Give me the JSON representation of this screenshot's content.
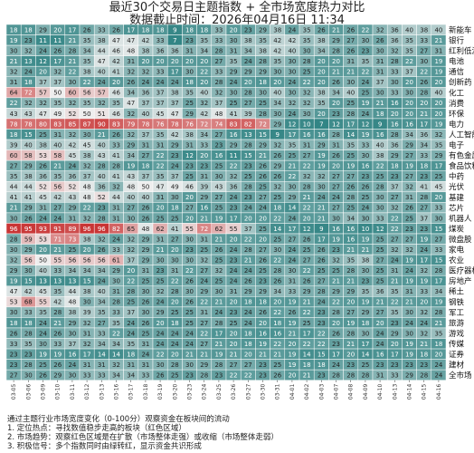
{
  "header": {
    "title": "最近30个交易日主题指数 + 全市场宽度热力对比",
    "subtitle": "数据截止时间：2026年04月16日 11:34"
  },
  "notes": {
    "lines": [
      "通过主题行业市场宽度变化（0-100分）观察资金在板块间的流动",
      "1. 定位热点：寻找数值稳步走高的板块（红色区域）",
      "2. 市场趋势：观察红色区域是在扩散（市场整体走强）或收缩（市场整体走弱）",
      "3. 积极信号：多个指数同时由绿转红，显示资金共识形成"
    ]
  },
  "chart_data": {
    "type": "heatmap",
    "title": "最近30个交易日主题指数 + 全市场宽度热力对比",
    "subtitle": "数据截止时间：2026年04月16日 11:34",
    "color_scale": {
      "low": "#2a8080",
      "mid": "#eeeeee",
      "high": "#c62828",
      "range": [
        0,
        100
      ]
    },
    "x": [
      "03-05",
      "03-06",
      "03-09",
      "03-10",
      "03-11",
      "03-12",
      "03-13",
      "03-16",
      "03-17",
      "03-18",
      "03-19",
      "03-20",
      "03-23",
      "03-24",
      "03-25",
      "03-26",
      "03-27",
      "03-30",
      "03-31",
      "04-01",
      "04-02",
      "04-03",
      "04-07",
      "04-08",
      "04-09",
      "04-10",
      "04-13",
      "04-14",
      "04-15",
      "04-16"
    ],
    "y": [
      "新能车",
      "银行",
      "红利低波",
      "电池",
      "通信",
      "创新药",
      "化工",
      "消费",
      "环保",
      "电力",
      "人工智能",
      "电子",
      "有色金属",
      "食品饮料",
      "中药",
      "光伏",
      "基建",
      "芯片",
      "机器人",
      "煤炭",
      "微盘股",
      "家电",
      "农业",
      "医疗器械",
      "房地产",
      "稀土",
      "钢铁",
      "军工",
      "旅游",
      "游戏",
      "传媒",
      "证券",
      "建材",
      "全市场"
    ],
    "values": [
      [
        18,
        18,
        29,
        20,
        17,
        26,
        33,
        26,
        17,
        18,
        18,
        9,
        18,
        18,
        33,
        20,
        23,
        29,
        38,
        24,
        35,
        26,
        21,
        26,
        22,
        32,
        36,
        40,
        38,
        40
      ],
      [
        19,
        23,
        11,
        11,
        21,
        35,
        38,
        47,
        47,
        42,
        33,
        7,
        23,
        35,
        33,
        30,
        38,
        35,
        42,
        42,
        35,
        38,
        29,
        27,
        30,
        26,
        36,
        35,
        33,
        21
      ],
      [
        30,
        32,
        24,
        26,
        28,
        34,
        44,
        46,
        48,
        38,
        36,
        36,
        31,
        34,
        28,
        31,
        34,
        38,
        42,
        40,
        30,
        34,
        28,
        26,
        23,
        30,
        32,
        35,
        27,
        31
      ],
      [
        21,
        13,
        12,
        17,
        21,
        35,
        47,
        42,
        31,
        20,
        20,
        20,
        20,
        20,
        27,
        35,
        24,
        28,
        35,
        30,
        28,
        20,
        20,
        31,
        35,
        31,
        28,
        22,
        30,
        19
      ],
      [
        32,
        24,
        20,
        32,
        22,
        38,
        40,
        41,
        32,
        32,
        33,
        17,
        30,
        22,
        33,
        29,
        29,
        29,
        30,
        30,
        25,
        20,
        21,
        21,
        22,
        31,
        33,
        37,
        22,
        19
      ],
      [
        31,
        18,
        37,
        37,
        30,
        22,
        24,
        20,
        26,
        24,
        24,
        24,
        18,
        20,
        28,
        24,
        20,
        18,
        20,
        24,
        22,
        20,
        26,
        30,
        24,
        37,
        30,
        20,
        26,
        20
      ],
      [
        64,
        72,
        57,
        50,
        60,
        56,
        57,
        46,
        34,
        36,
        37,
        38,
        35,
        40,
        32,
        30,
        28,
        30,
        40,
        30,
        32,
        38,
        34,
        40,
        25,
        30,
        33,
        30,
        28,
        40
      ],
      [
        22,
        32,
        32,
        35,
        32,
        35,
        32,
        35,
        47,
        37,
        37,
        37,
        25,
        32,
        37,
        25,
        27,
        25,
        34,
        32,
        32,
        35,
        20,
        25,
        19,
        21,
        16,
        20,
        20,
        20
      ],
      [
        43,
        43,
        47,
        49,
        52,
        50,
        51,
        46,
        32,
        40,
        45,
        47,
        29,
        42,
        48,
        41,
        39,
        28,
        30,
        24,
        30,
        20,
        23,
        28,
        24,
        18,
        20,
        20,
        21,
        20
      ],
      [
        78,
        78,
        80,
        83,
        85,
        87,
        90,
        83,
        79,
        78,
        76,
        78,
        76,
        72,
        74,
        83,
        82,
        72,
        29,
        12,
        10,
        7,
        12,
        17,
        12,
        9,
        16,
        16,
        17,
        19
      ],
      [
        18,
        15,
        25,
        31,
        32,
        30,
        21,
        26,
        32,
        37,
        35,
        42,
        38,
        34,
        27,
        16,
        13,
        15,
        9,
        17,
        16,
        16,
        28,
        14,
        19,
        16,
        28,
        34,
        36,
        32
      ],
      [
        39,
        40,
        38,
        40,
        42,
        45,
        40,
        33,
        29,
        31,
        31,
        29,
        31,
        33,
        23,
        29,
        28,
        29,
        32,
        35,
        31,
        29,
        31,
        35,
        33,
        40,
        36,
        29,
        34,
        35
      ],
      [
        60,
        58,
        53,
        58,
        45,
        38,
        43,
        41,
        34,
        27,
        22,
        23,
        12,
        20,
        16,
        11,
        15,
        21,
        26,
        25,
        27,
        19,
        26,
        25,
        30,
        38,
        29,
        27,
        33,
        29
      ],
      [
        27,
        29,
        26,
        21,
        24,
        32,
        28,
        28,
        19,
        18,
        22,
        24,
        23,
        23,
        25,
        22,
        23,
        26,
        29,
        21,
        22,
        19,
        20,
        19,
        16,
        22,
        18,
        19,
        18,
        17
      ],
      [
        35,
        38,
        36,
        35,
        36,
        37,
        40,
        41,
        43,
        37,
        35,
        37,
        25,
        31,
        30,
        32,
        25,
        26,
        26,
        22,
        32,
        32,
        27,
        27,
        23,
        25,
        23,
        27,
        23,
        25
      ],
      [
        44,
        44,
        52,
        56,
        52,
        48,
        36,
        32,
        48,
        50,
        47,
        49,
        46,
        39,
        43,
        36,
        28,
        25,
        32,
        30,
        28,
        30,
        27,
        26,
        26,
        28,
        37,
        32,
        41,
        45
      ],
      [
        41,
        41,
        45,
        42,
        43,
        48,
        52,
        44,
        40,
        40,
        31,
        30,
        20,
        29,
        27,
        24,
        23,
        27,
        25,
        29,
        21,
        24,
        24,
        28,
        25,
        30,
        27,
        31,
        28,
        20
      ],
      [
        21,
        29,
        31,
        27,
        29,
        22,
        23,
        31,
        27,
        26,
        20,
        18,
        27,
        16,
        25,
        23,
        24,
        24,
        18,
        14,
        22,
        21,
        27,
        25,
        24,
        30,
        32,
        26,
        27,
        33
      ],
      [
        30,
        26,
        24,
        24,
        31,
        32,
        28,
        31,
        30,
        26,
        25,
        25,
        20,
        21,
        19,
        17,
        20,
        20,
        22,
        24,
        20,
        21,
        30,
        34,
        30,
        33,
        22,
        25,
        37,
        30
      ],
      [
        96,
        95,
        93,
        91,
        89,
        96,
        96,
        82,
        65,
        48,
        62,
        41,
        55,
        72,
        62,
        55,
        37,
        25,
        14,
        17,
        12,
        9,
        16,
        16,
        10,
        12,
        22,
        23,
        23,
        15
      ],
      [
        28,
        59,
        53,
        71,
        73,
        38,
        32,
        24,
        32,
        29,
        31,
        27,
        30,
        31,
        21,
        20,
        22,
        20,
        25,
        27,
        26,
        17,
        19,
        16,
        19,
        25,
        27,
        27,
        19,
        27
      ],
      [
        30,
        29,
        20,
        21,
        25,
        20,
        26,
        33,
        32,
        29,
        21,
        20,
        23,
        25,
        26,
        24,
        28,
        27,
        30,
        24,
        25,
        26,
        23,
        21,
        21,
        25,
        32,
        32,
        24,
        33
      ],
      [
        32,
        56,
        50,
        55,
        56,
        56,
        56,
        61,
        37,
        29,
        30,
        30,
        30,
        32,
        25,
        23,
        21,
        26,
        22,
        24,
        27,
        26,
        32,
        35,
        38,
        27,
        24,
        19,
        17,
        15
      ],
      [
        29,
        30,
        40,
        33,
        34,
        34,
        34,
        29,
        20,
        31,
        23,
        31,
        22,
        27,
        32,
        24,
        24,
        25,
        28,
        30,
        22,
        25,
        25,
        28,
        30,
        25,
        31,
        24,
        32,
        28
      ],
      [
        19,
        15,
        13,
        13,
        13,
        15,
        24,
        30,
        22,
        25,
        25,
        22,
        26,
        24,
        25,
        24,
        26,
        23,
        26,
        31,
        26,
        27,
        21,
        21,
        23,
        25,
        21,
        19,
        19,
        17
      ],
      [
        47,
        42,
        45,
        35,
        44,
        38,
        40,
        31,
        28,
        30,
        32,
        28,
        30,
        29,
        30,
        31,
        29,
        29,
        34,
        33,
        29,
        28,
        29,
        29,
        35,
        36,
        35,
        31,
        33,
        34
      ],
      [
        53,
        68,
        55,
        42,
        48,
        30,
        34,
        28,
        25,
        26,
        24,
        20,
        26,
        22,
        21,
        20,
        18,
        18,
        20,
        19,
        21,
        24,
        22,
        20,
        19,
        21,
        22,
        21,
        20,
        19
      ],
      [
        30,
        33,
        35,
        28,
        38,
        39,
        35,
        33,
        37,
        30,
        29,
        25,
        25,
        31,
        24,
        23,
        24,
        26,
        22,
        26,
        22,
        23,
        28,
        27,
        29,
        27,
        35,
        30,
        32,
        28
      ],
      [
        18,
        18,
        24,
        21,
        29,
        32,
        27,
        35,
        24,
        26,
        20,
        18,
        25,
        27,
        28,
        25,
        24,
        20,
        18,
        19,
        25,
        23,
        20,
        19,
        18,
        20,
        23,
        24,
        24,
        21
      ],
      [
        26,
        28,
        24,
        26,
        30,
        31,
        33,
        22,
        24,
        25,
        24,
        24,
        24,
        22,
        17,
        20,
        18,
        16,
        16,
        21,
        17,
        22,
        26,
        28,
        30,
        24,
        29,
        30,
        32,
        35
      ],
      [
        33,
        35,
        30,
        33,
        37,
        32,
        34,
        34,
        35,
        31,
        24,
        24,
        24,
        27,
        21,
        20,
        18,
        19,
        22,
        20,
        22,
        22,
        23,
        21,
        17,
        24,
        20,
        19,
        21,
        18
      ],
      [
        23,
        23,
        19,
        19,
        16,
        17,
        14,
        14,
        18,
        24,
        22,
        20,
        21,
        21,
        19,
        21,
        20,
        21,
        21,
        19,
        14,
        15,
        17,
        20,
        14,
        16,
        17,
        19,
        18,
        20
      ],
      [
        23,
        28,
        25,
        26,
        24,
        31,
        31,
        32,
        31,
        31,
        30,
        28,
        30,
        29,
        28,
        27,
        27,
        23,
        25,
        19,
        18,
        18,
        24,
        23,
        25,
        23,
        23,
        23,
        23,
        24
      ],
      [
        27,
        30,
        26,
        29,
        30,
        33,
        33,
        34,
        34,
        33,
        26,
        25,
        23,
        28,
        23,
        22,
        22,
        23,
        26,
        20,
        21,
        23,
        28,
        28,
        28,
        31,
        33,
        29,
        28,
        24
      ]
    ]
  }
}
